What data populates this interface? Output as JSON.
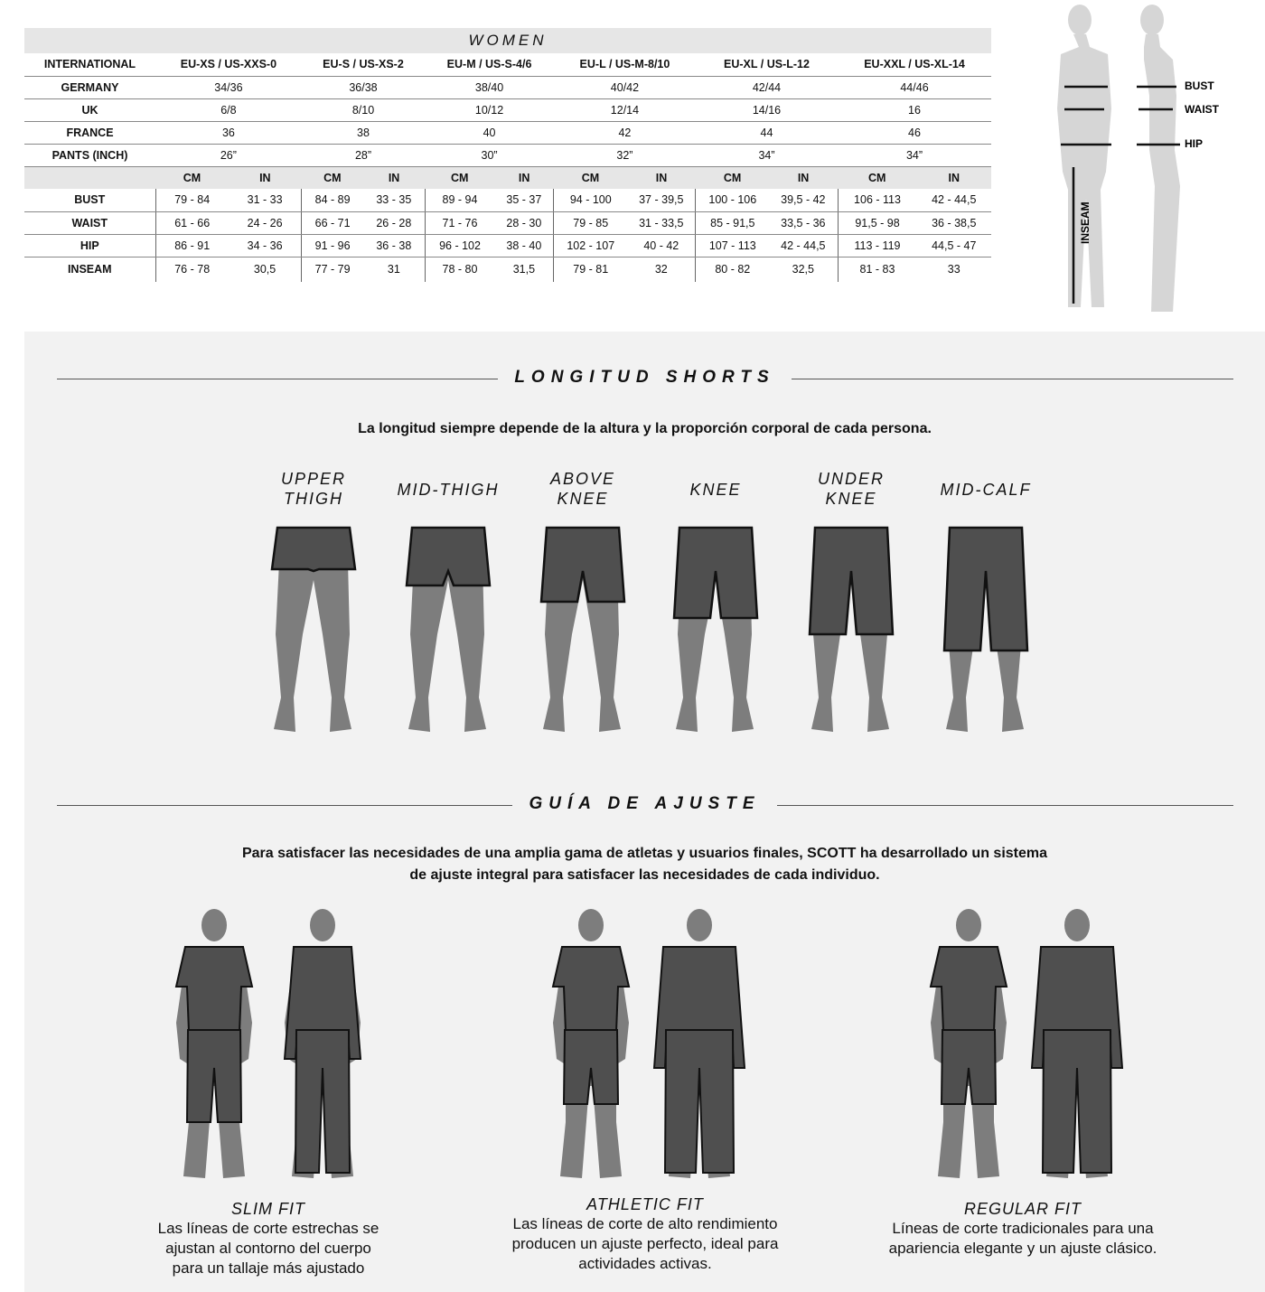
{
  "size_table": {
    "title": "WOMEN",
    "rows": [
      {
        "label": "INTERNATIONAL",
        "values": [
          "EU-XS / US-XXS-0",
          "EU-S / US-XS-2",
          "EU-M / US-S-4/6",
          "EU-L / US-M-8/10",
          "EU-XL / US-L-12",
          "EU-XXL / US-XL-14"
        ]
      },
      {
        "label": "GERMANY",
        "values": [
          "34/36",
          "36/38",
          "38/40",
          "40/42",
          "42/44",
          "44/46"
        ]
      },
      {
        "label": "UK",
        "values": [
          "6/8",
          "8/10",
          "10/12",
          "12/14",
          "14/16",
          "16"
        ]
      },
      {
        "label": "FRANCE",
        "values": [
          "36",
          "38",
          "40",
          "42",
          "44",
          "46"
        ]
      },
      {
        "label": "PANTS (INCH)",
        "values": [
          "26”",
          "28”",
          "30”",
          "32”",
          "34”",
          "34”"
        ]
      }
    ],
    "unit_headers": [
      "CM",
      "IN"
    ],
    "measure_rows": [
      {
        "label": "BUST",
        "values": [
          "79 - 84",
          "31 - 33",
          "84 - 89",
          "33 - 35",
          "89 - 94",
          "35 - 37",
          "94 - 100",
          "37 - 39,5",
          "100 - 106",
          "39,5 - 42",
          "106 - 113",
          "42 - 44,5"
        ]
      },
      {
        "label": "WAIST",
        "values": [
          "61 - 66",
          "24 - 26",
          "66 - 71",
          "26 - 28",
          "71 - 76",
          "28 - 30",
          "79 - 85",
          "31 - 33,5",
          "85 - 91,5",
          "33,5 - 36",
          "91,5 - 98",
          "36 - 38,5"
        ]
      },
      {
        "label": "HIP",
        "values": [
          "86 - 91",
          "34 - 36",
          "91 - 96",
          "36 - 38",
          "96 - 102",
          "38 - 40",
          "102 - 107",
          "40 - 42",
          "107 - 113",
          "42 - 44,5",
          "113 - 119",
          "44,5 - 47"
        ]
      },
      {
        "label": "INSEAM",
        "values": [
          "76 - 78",
          "30,5",
          "77 - 79",
          "31",
          "78 - 80",
          "31,5",
          "79 - 81",
          "32",
          "80 - 82",
          "32,5",
          "81 - 83",
          "33"
        ]
      }
    ]
  },
  "figure_labels": {
    "bust": "BUST",
    "waist": "WAIST",
    "hip": "HIP",
    "inseam": "INSEAM"
  },
  "shorts": {
    "title": "LONGITUD SHORTS",
    "subtitle": "La longitud siempre depende de la altura y la proporción corporal de cada persona.",
    "items": [
      {
        "label": "UPPER\nTHIGH",
        "length": 0.15
      },
      {
        "label": "MID-THIGH",
        "length": 0.3
      },
      {
        "label": "ABOVE\nKNEE",
        "length": 0.45
      },
      {
        "label": "KNEE",
        "length": 0.6
      },
      {
        "label": "UNDER\nKNEE",
        "length": 0.75
      },
      {
        "label": "MID-CALF",
        "length": 0.9
      }
    ]
  },
  "fit": {
    "title": "GUÍA DE AJUSTE",
    "intro_line1": "Para satisfacer las necesidades de una amplia gama de atletas y usuarios finales, SCOTT ha desarrollado un sistema",
    "intro_line2": "de ajuste integral para satisfacer las necesidades de cada individuo.",
    "items": [
      {
        "name": "SLIM FIT",
        "description": "Las líneas de corte estrechas se ajustan al contorno del cuerpo para un tallaje más ajustado"
      },
      {
        "name": "ATHLETIC FIT",
        "description": "Las líneas de corte de alto rendimiento producen un ajuste perfecto, ideal para actividades activas."
      },
      {
        "name": "REGULAR FIT",
        "description": "Líneas de corte tradicionales para una apariencia elegante y un ajuste clásico."
      }
    ]
  },
  "colors": {
    "skin": "#7d7d7d",
    "garment": "#4f4f4f",
    "panel": "#f2f2f2",
    "header": "#e6e6e6"
  }
}
